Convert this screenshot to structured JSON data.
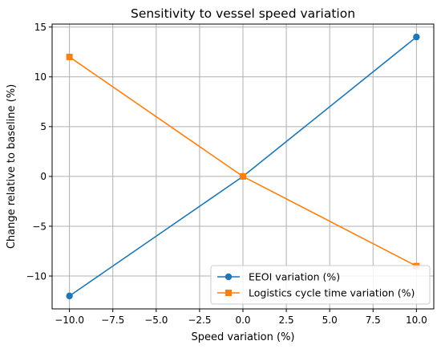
{
  "chart_data": {
    "type": "line",
    "title": "Sensitivity to vessel speed variation",
    "xlabel": "Speed variation (%)",
    "ylabel": "Change relative to baseline (%)",
    "x": [
      -10,
      0,
      10
    ],
    "xlim": [
      -11,
      11
    ],
    "ylim": [
      -13.3,
      15.3
    ],
    "xticks": [
      -10.0,
      -7.5,
      -5.0,
      -2.5,
      0.0,
      2.5,
      5.0,
      7.5,
      10.0
    ],
    "xtick_labels": [
      "−10.0",
      "−7.5",
      "−5.0",
      "−2.5",
      "0.0",
      "2.5",
      "5.0",
      "7.5",
      "10.0"
    ],
    "yticks": [
      -10,
      -5,
      0,
      5,
      10,
      15
    ],
    "ytick_labels": [
      "−10",
      "−5",
      "0",
      "5",
      "10",
      "15"
    ],
    "grid": true,
    "legend_position": "lower-right",
    "series": [
      {
        "name": "EEOI variation (%)",
        "values": [
          -12,
          0,
          14
        ],
        "color": "#1f77b4",
        "marker": "circle"
      },
      {
        "name": "Logistics cycle time variation (%)",
        "values": [
          12,
          0,
          -9
        ],
        "color": "#ff7f0e",
        "marker": "square"
      }
    ]
  }
}
